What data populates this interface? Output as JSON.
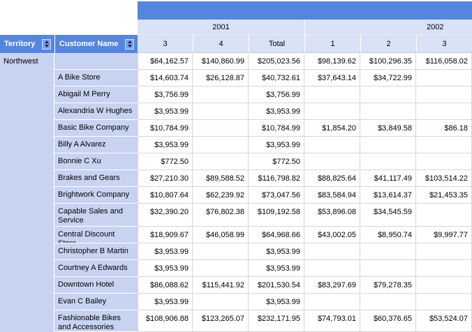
{
  "report": {
    "columns": {
      "territory_header": "Territory",
      "customer_header": "Customer Name",
      "years": [
        "2001",
        "2002"
      ],
      "quarters": [
        "3",
        "4",
        "Total",
        "1",
        "2",
        "3"
      ]
    },
    "territory_value": "Northwest",
    "rows": [
      {
        "customer": "",
        "values": [
          "$64,162.57",
          "$140,860.99",
          "$205,023.56",
          "$98,139.62",
          "$100,296.35",
          "$116,058.02"
        ]
      },
      {
        "customer": "A Bike Store",
        "values": [
          "$14,603.74",
          "$26,128.87",
          "$40,732.61",
          "$37,643.14",
          "$34,722.99",
          ""
        ]
      },
      {
        "customer": "Abigail M Perry",
        "values": [
          "$3,756.99",
          "",
          "$3,756.99",
          "",
          "",
          ""
        ]
      },
      {
        "customer": "Alexandria W Hughes",
        "values": [
          "$3,953.99",
          "",
          "$3,953.99",
          "",
          "",
          ""
        ]
      },
      {
        "customer": "Basic Bike Company",
        "values": [
          "$10,784.99",
          "",
          "$10,784.99",
          "$1,854.20",
          "$3,849.58",
          "$86.18"
        ]
      },
      {
        "customer": "Billy A Alvarez",
        "values": [
          "$3,953.99",
          "",
          "$3,953.99",
          "",
          "",
          ""
        ]
      },
      {
        "customer": "Bonnie C Xu",
        "values": [
          "$772.50",
          "",
          "$772.50",
          "",
          "",
          ""
        ]
      },
      {
        "customer": "Brakes and Gears",
        "values": [
          "$27,210.30",
          "$89,588.52",
          "$116,798.82",
          "$88,825.64",
          "$41,117.49",
          "$103,514.22"
        ]
      },
      {
        "customer": "Brightwork Company",
        "values": [
          "$10,807.64",
          "$62,239.92",
          "$73,047.56",
          "$83,584.94",
          "$13,614.37",
          "$21,453.35"
        ]
      },
      {
        "customer": "Capable Sales and Service",
        "values": [
          "$32,390.20",
          "$76,802.38",
          "$109,192.58",
          "$53,896.08",
          "$34,545.59",
          ""
        ]
      },
      {
        "customer": "Central Discount Store",
        "values": [
          "$18,909.67",
          "$46,058.99",
          "$64,968.66",
          "$43,002.05",
          "$8,950.74",
          "$9,997.77"
        ]
      },
      {
        "customer": "Christopher B Martin",
        "values": [
          "$3,953.99",
          "",
          "$3,953.99",
          "",
          "",
          ""
        ]
      },
      {
        "customer": "Courtney A Edwards",
        "values": [
          "$3,953.99",
          "",
          "$3,953.99",
          "",
          "",
          ""
        ]
      },
      {
        "customer": "Downtown Hotel",
        "values": [
          "$86,088.62",
          "$115,441.92",
          "$201,530.54",
          "$83,297.69",
          "$79,278.35",
          ""
        ]
      },
      {
        "customer": "Evan C Bailey",
        "values": [
          "$3,953.99",
          "",
          "$3,953.99",
          "",
          "",
          ""
        ]
      },
      {
        "customer": "Fashionable Bikes and Accessories",
        "values": [
          "$108,906.88",
          "$123,265.07",
          "$232,171.95",
          "$74,793.01",
          "$60,376.65",
          "$53,524.07"
        ]
      }
    ],
    "icons": {
      "sort": "sort-toggle-icon"
    },
    "colors": {
      "header_blue": "#5586DD",
      "group_column_blue": "#C7D3F1",
      "column_header_blue": "#D9E2F7",
      "grid_line": "#D6D6D6",
      "sort_button_blue": "#7EA3EB",
      "sort_arrow_navy": "#16224D"
    }
  }
}
